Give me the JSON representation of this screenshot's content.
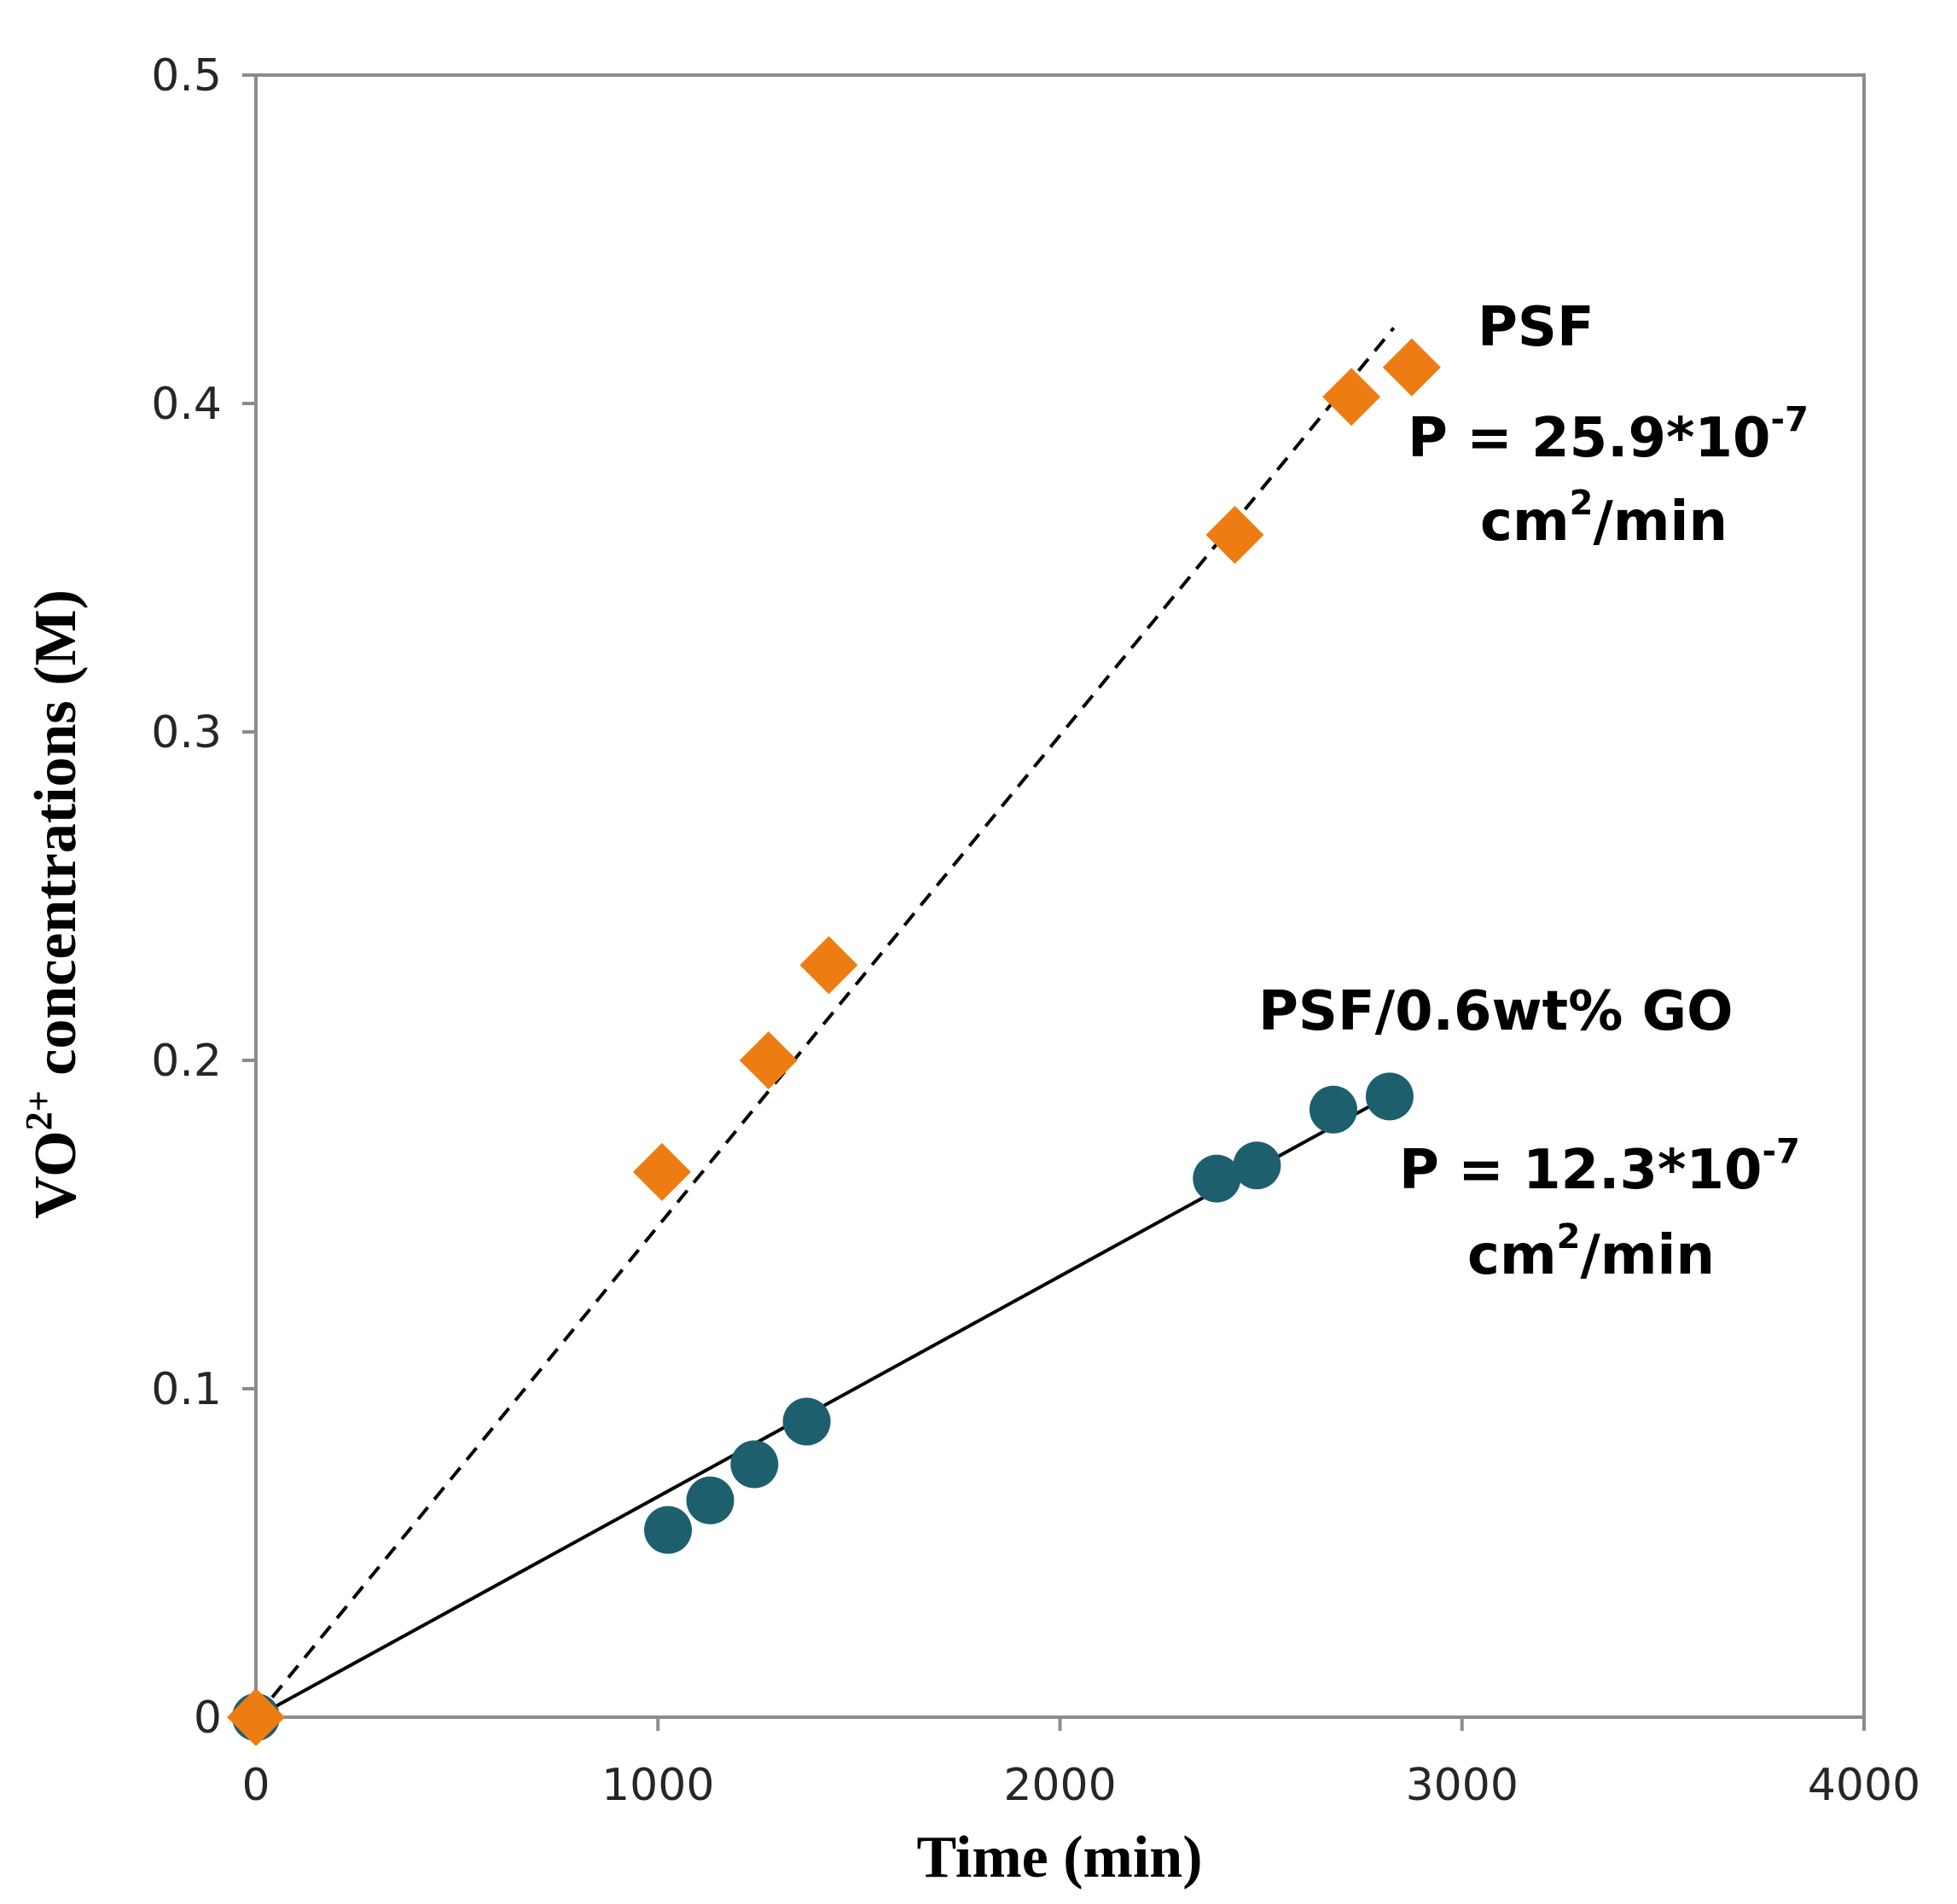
{
  "chart_data": {
    "type": "scatter",
    "xlabel": "Time (min)",
    "ylabel": {
      "prefix": "VO",
      "superscript": "2+",
      "suffix": " concentrations (M)"
    },
    "xlim": [
      0,
      4000
    ],
    "ylim": [
      0,
      0.5
    ],
    "x_ticks": [
      "0",
      "1000",
      "2000",
      "3000",
      "4000"
    ],
    "y_ticks": [
      "0",
      "0.1",
      "0.2",
      "0.3",
      "0.4",
      "0.5"
    ],
    "x_tick_values": [
      0,
      1000,
      2000,
      3000,
      4000
    ],
    "y_tick_values": [
      0,
      0.1,
      0.2,
      0.3,
      0.4,
      0.5
    ],
    "grid": false,
    "legend": "none",
    "series": [
      {
        "marker": "diamond",
        "color": "#ED7D12",
        "x": [
          0,
          1010,
          1275,
          1425,
          2435,
          2725,
          2875
        ],
        "y": [
          0,
          0.166,
          0.2,
          0.229,
          0.36,
          0.402,
          0.411
        ],
        "fit": {
          "style": "dashed",
          "x": [
            0,
            2830
          ],
          "y": [
            0,
            0.423
          ]
        }
      },
      {
        "marker": "circle",
        "color": "#1E5F6E",
        "x": [
          0,
          1025,
          1130,
          1240,
          1370,
          2390,
          2490,
          2680,
          2820
        ],
        "y": [
          0,
          0.057,
          0.066,
          0.077,
          0.09,
          0.164,
          0.168,
          0.185,
          0.189
        ],
        "fit": {
          "style": "solid",
          "x": [
            0,
            2830
          ],
          "y": [
            0,
            0.19
          ]
        }
      }
    ],
    "annotations": {
      "psf_name": "PSF",
      "psf_perm": {
        "prefix": "P = 25.9*10",
        "exp": "-7"
      },
      "psf_unit": {
        "prefix": "cm",
        "exp": "2",
        "suffix": "/min"
      },
      "go_name": "PSF/0.6wt% GO",
      "go_perm": {
        "prefix": "P = 12.3*10",
        "exp": "-7"
      },
      "go_unit": {
        "prefix": "cm",
        "exp": "2",
        "suffix": "/min"
      }
    }
  }
}
